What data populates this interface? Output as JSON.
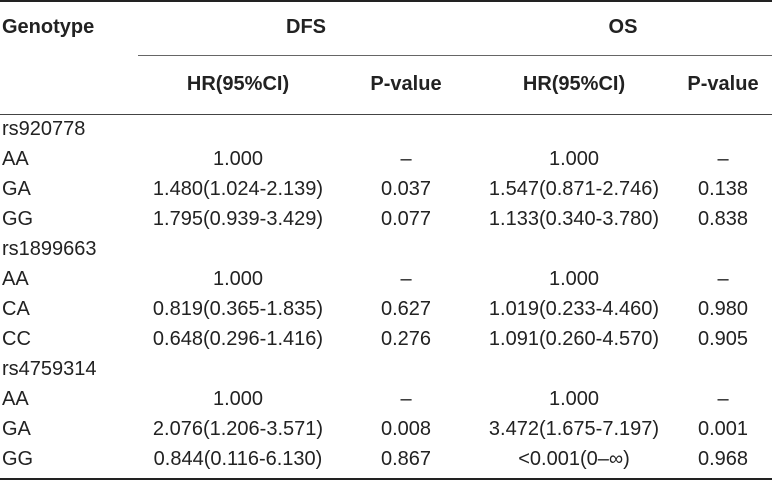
{
  "header": {
    "genotype": "Genotype",
    "dfs": "DFS",
    "os": "OS",
    "hr_label": "HR(95%CI)",
    "p_label": "P-value"
  },
  "groups": [
    {
      "snp": "rs920778",
      "rows": [
        {
          "genotype": "AA",
          "dfs_hr": "1.000",
          "dfs_p": "–",
          "os_hr": "1.000",
          "os_p": "–"
        },
        {
          "genotype": "GA",
          "dfs_hr": "1.480(1.024-2.139)",
          "dfs_p": "0.037",
          "os_hr": "1.547(0.871-2.746)",
          "os_p": "0.138"
        },
        {
          "genotype": "GG",
          "dfs_hr": "1.795(0.939-3.429)",
          "dfs_p": "0.077",
          "os_hr": "1.133(0.340-3.780)",
          "os_p": "0.838"
        }
      ]
    },
    {
      "snp": "rs1899663",
      "rows": [
        {
          "genotype": "AA",
          "dfs_hr": "1.000",
          "dfs_p": "–",
          "os_hr": "1.000",
          "os_p": "–"
        },
        {
          "genotype": "CA",
          "dfs_hr": "0.819(0.365-1.835)",
          "dfs_p": "0.627",
          "os_hr": "1.019(0.233-4.460)",
          "os_p": "0.980"
        },
        {
          "genotype": "CC",
          "dfs_hr": "0.648(0.296-1.416)",
          "dfs_p": "0.276",
          "os_hr": "1.091(0.260-4.570)",
          "os_p": "0.905"
        }
      ]
    },
    {
      "snp": "rs4759314",
      "rows": [
        {
          "genotype": "AA",
          "dfs_hr": "1.000",
          "dfs_p": "–",
          "os_hr": "1.000",
          "os_p": "–"
        },
        {
          "genotype": "GA",
          "dfs_hr": "2.076(1.206-3.571)",
          "dfs_p": "0.008",
          "os_hr": "3.472(1.675-7.197)",
          "os_p": "0.001"
        },
        {
          "genotype": "GG",
          "dfs_hr": "0.844(0.116-6.130)",
          "dfs_p": "0.867",
          "os_hr": "<0.001(0–∞)",
          "os_p": "0.968"
        }
      ]
    }
  ]
}
